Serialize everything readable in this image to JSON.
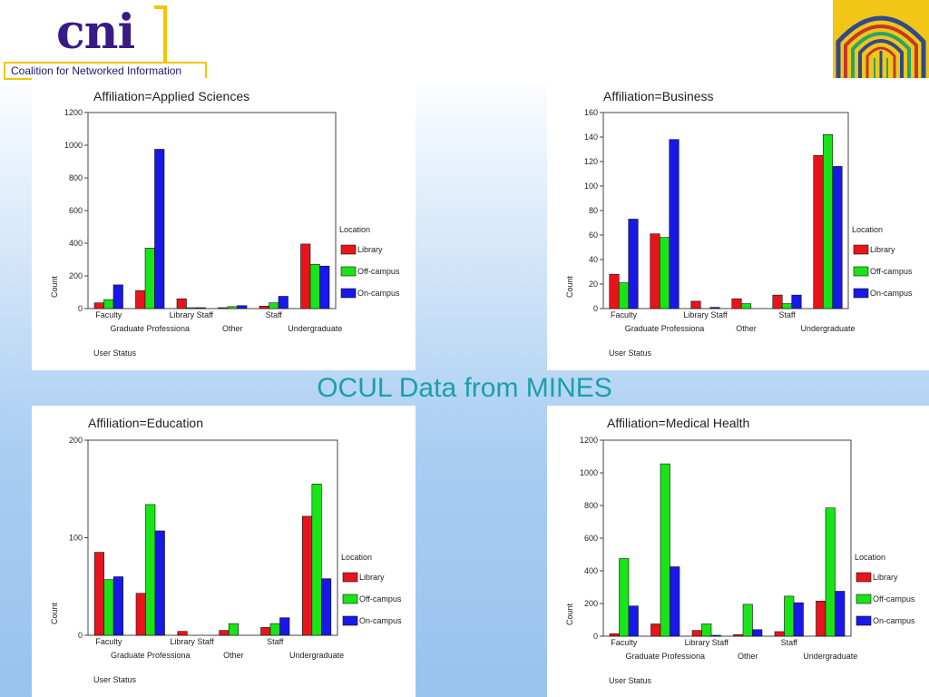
{
  "slide": {
    "title": "OCUL Data from MINES"
  },
  "logo": {
    "letters": "cni",
    "tagline": "Coalition for Networked Information"
  },
  "legend_title": "Location",
  "x_axis_label": "User Status",
  "y_axis_label": "Count",
  "colors": {
    "Library": "#e8141c",
    "Off-campus": "#18e418",
    "On-campus": "#1818e8"
  },
  "chart_data": [
    {
      "type": "bar",
      "title": "Affiliation=Applied Sciences",
      "xlabel": "User Status",
      "ylabel": "Count",
      "ylim": [
        0,
        1200
      ],
      "yticks": [
        0,
        200,
        400,
        600,
        800,
        1000,
        1200
      ],
      "legend": {
        "title": "Location",
        "placement": "right"
      },
      "categories": [
        "Faculty",
        "Graduate Professiona",
        "Library Staff",
        "Other",
        "Staff",
        "Undergraduate"
      ],
      "series": [
        {
          "name": "Library",
          "values": [
            35,
            110,
            60,
            3,
            15,
            395
          ]
        },
        {
          "name": "Off-campus",
          "values": [
            55,
            370,
            3,
            12,
            35,
            270
          ]
        },
        {
          "name": "On-campus",
          "values": [
            145,
            975,
            5,
            18,
            75,
            260
          ]
        }
      ]
    },
    {
      "type": "bar",
      "title": "Affiliation=Business",
      "xlabel": "User Status",
      "ylabel": "Count",
      "ylim": [
        0,
        160
      ],
      "yticks": [
        0,
        20,
        40,
        60,
        80,
        100,
        120,
        140,
        160
      ],
      "legend": {
        "title": "Location",
        "placement": "right"
      },
      "categories": [
        "Faculty",
        "Graduate Professiona",
        "Library Staff",
        "Other",
        "Staff",
        "Undergraduate"
      ],
      "series": [
        {
          "name": "Library",
          "values": [
            28,
            61,
            6,
            8,
            11,
            125
          ]
        },
        {
          "name": "Off-campus",
          "values": [
            21,
            58,
            0,
            4,
            4,
            142
          ]
        },
        {
          "name": "On-campus",
          "values": [
            73,
            138,
            1,
            0,
            11,
            116
          ]
        }
      ]
    },
    {
      "type": "bar",
      "title": "Affiliation=Education",
      "xlabel": "User Status",
      "ylabel": "Count",
      "ylim": [
        0,
        200
      ],
      "yticks": [
        0,
        100,
        200
      ],
      "legend": {
        "title": "Location",
        "placement": "right"
      },
      "categories": [
        "Faculty",
        "Graduate Professiona",
        "Library Staff",
        "Other",
        "Staff",
        "Undergraduate"
      ],
      "series": [
        {
          "name": "Library",
          "values": [
            85,
            43,
            4,
            5,
            8,
            122
          ]
        },
        {
          "name": "Off-campus",
          "values": [
            57,
            134,
            0,
            12,
            12,
            155
          ]
        },
        {
          "name": "On-campus",
          "values": [
            60,
            107,
            0,
            0,
            18,
            58
          ]
        }
      ]
    },
    {
      "type": "bar",
      "title": "Affiliation=Medical Health",
      "xlabel": "User Status",
      "ylabel": "Count",
      "ylim": [
        0,
        1200
      ],
      "yticks": [
        0,
        200,
        400,
        600,
        800,
        1000,
        1200
      ],
      "legend": {
        "title": "Location",
        "placement": "right"
      },
      "categories": [
        "Faculty",
        "Graduate Professiona",
        "Library Staff",
        "Other",
        "Staff",
        "Undergraduate"
      ],
      "series": [
        {
          "name": "Library",
          "values": [
            15,
            75,
            35,
            10,
            28,
            215
          ]
        },
        {
          "name": "Off-campus",
          "values": [
            475,
            1055,
            75,
            195,
            245,
            785
          ]
        },
        {
          "name": "On-campus",
          "values": [
            185,
            425,
            5,
            40,
            205,
            275
          ]
        }
      ]
    }
  ]
}
